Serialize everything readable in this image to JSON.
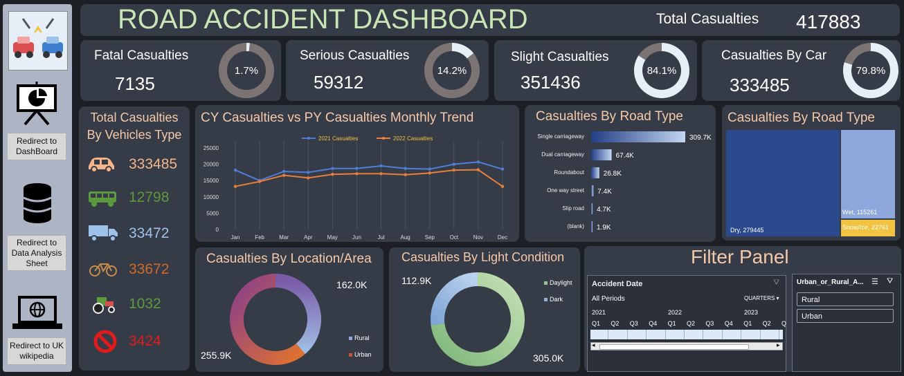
{
  "header": {
    "title": "ROAD ACCIDENT DASHBOARD",
    "total_label": "Total Casualties",
    "total_value": "417883"
  },
  "sidebar": {
    "buttons": [
      {
        "label": "Redirect to DashBoard"
      },
      {
        "label": "Redirect to Data Analysis Sheet"
      },
      {
        "label": "Redirect to UK wikipedia"
      }
    ]
  },
  "kpis": [
    {
      "title": "Fatal Casualties",
      "value": "7135",
      "pct": "1.7%",
      "fraction": 0.017
    },
    {
      "title": "Serious Casualties",
      "value": "59312",
      "pct": "14.2%",
      "fraction": 0.142
    },
    {
      "title": "Slight Casualties",
      "value": "351436",
      "pct": "84.1%",
      "fraction": 0.841
    },
    {
      "title": "Casualties By Car",
      "value": "333485",
      "pct": "79.8%",
      "fraction": 0.798
    }
  ],
  "vehicles": {
    "title": "Total Casualties By Vehicles Type",
    "items": [
      {
        "icon": "car-icon",
        "value": "333485",
        "color": "#f5b48a"
      },
      {
        "icon": "bus-icon",
        "value": "12798",
        "color": "#5d9a3d"
      },
      {
        "icon": "truck-icon",
        "value": "33472",
        "color": "#9ec3ea"
      },
      {
        "icon": "bicycle-icon",
        "value": "33672",
        "color": "#d0692c"
      },
      {
        "icon": "tractor-icon",
        "value": "1032",
        "color": "#5d9a3d"
      },
      {
        "icon": "prohibited-icon",
        "value": "3424",
        "color": "#e01c1c"
      }
    ]
  },
  "trend": {
    "title": "CY Casualties vs PY Casualties Monthly Trend",
    "chart_data": {
      "type": "line",
      "categories": [
        "Jan",
        "Feb",
        "Mar",
        "Apr",
        "May",
        "Jun",
        "Jul",
        "Aug",
        "Sep",
        "Oct",
        "Nov",
        "Dec"
      ],
      "series": [
        {
          "name": "2021 Casualties",
          "color": "#4f7ed8",
          "values": [
            18200,
            15000,
            17800,
            17500,
            18700,
            18700,
            19500,
            18700,
            18500,
            20000,
            20700,
            18500
          ]
        },
        {
          "name": "2022 Casualties",
          "color": "#e87f3a",
          "values": [
            13200,
            14700,
            16600,
            15800,
            16900,
            17100,
            17100,
            16800,
            17300,
            18200,
            18300,
            13200
          ]
        }
      ],
      "ylim": [
        0,
        25000
      ],
      "yticks": [
        "25000",
        "20000",
        "15000",
        "10000",
        "5000",
        "0"
      ],
      "grid": true,
      "legend": "top"
    }
  },
  "road_type_bar": {
    "title": "Casualties By Road Type",
    "chart_data": {
      "type": "bar",
      "categories": [
        "Single carriageway",
        "Dual carriageway",
        "Roundabout",
        "One way street",
        "Slip road",
        "(blank)"
      ],
      "values": [
        309.7,
        67.4,
        26.8,
        7.4,
        4.7,
        1.9
      ],
      "labels": [
        "309.7K",
        "67.4K",
        "26.8K",
        "7.4K",
        "4.7K",
        "1.9K"
      ]
    }
  },
  "road_type_tree": {
    "title": "Casualties By Road Type",
    "chart_data": {
      "type": "treemap",
      "items": [
        {
          "label": "Dry, 279445",
          "value": 279445,
          "color": "#2b4a8e"
        },
        {
          "label": "Wet, 115261",
          "value": 115261,
          "color": "#8ea7dc"
        },
        {
          "label": "Snow/Ice, 22761",
          "value": 22761,
          "color": "#f1c341"
        }
      ]
    }
  },
  "location": {
    "title": "Casualties By Location/Area",
    "chart_data": {
      "type": "pie",
      "categories": [
        "Rural",
        "Urban"
      ],
      "values": [
        162.0,
        255.9
      ],
      "labels": [
        "162.0K",
        "255.9K"
      ]
    },
    "legend": [
      "Rural",
      "Urban"
    ]
  },
  "light": {
    "title": "Casualties By Light Condition",
    "chart_data": {
      "type": "pie",
      "categories": [
        "Daylight",
        "Dark"
      ],
      "values": [
        305.0,
        112.9
      ],
      "labels": [
        "305.0K",
        "112.9K"
      ]
    },
    "legend": [
      "Daylight",
      "Dark"
    ]
  },
  "filter": {
    "title": "Filter Panel",
    "timeline": {
      "title": "Accident Date",
      "periods": "All Periods",
      "level": "QUARTERS",
      "years": [
        "2021",
        "2022",
        "2023"
      ],
      "quarters": [
        "Q1",
        "Q2",
        "Q3",
        "Q4",
        "Q1",
        "Q2",
        "Q3",
        "Q4",
        "Q1",
        "Q2",
        "Q"
      ]
    },
    "slicer": {
      "title": "Urban_or_Rural_A...",
      "items": [
        "Rural",
        "Urban"
      ]
    }
  },
  "colors": {
    "panel": "#353b47",
    "accent_title": "#f5c9a8",
    "header_title": "#c8e6b4"
  }
}
